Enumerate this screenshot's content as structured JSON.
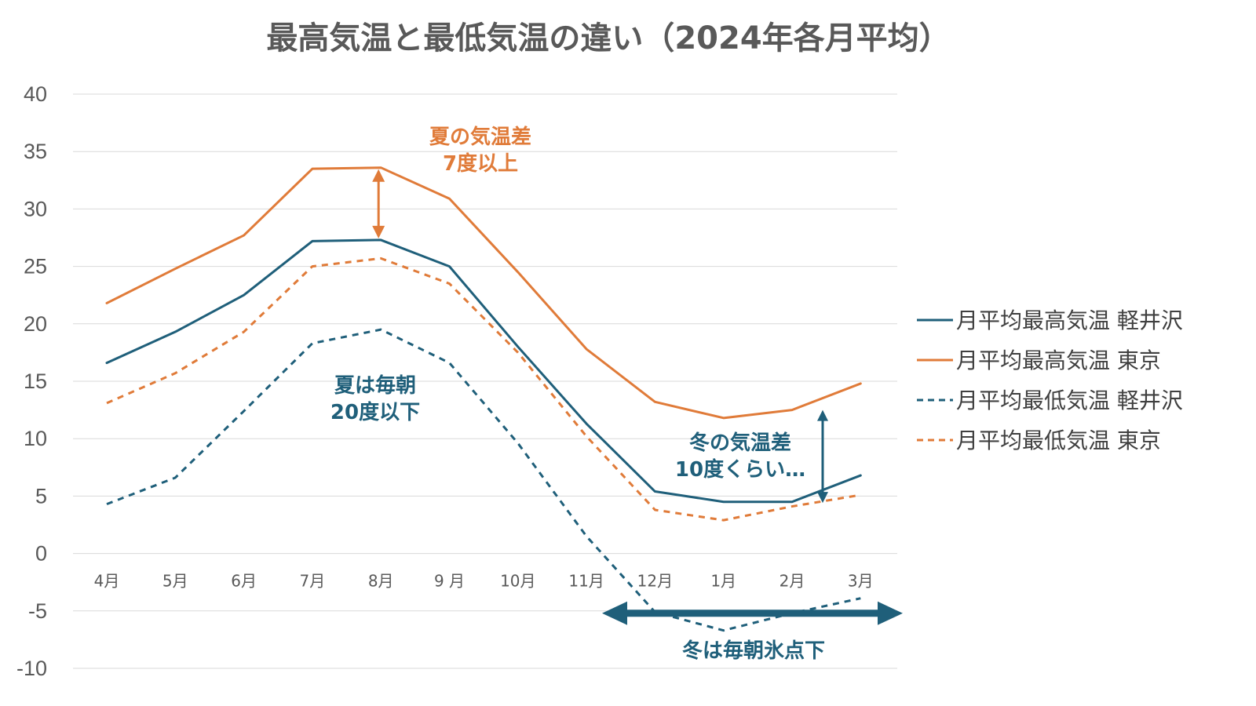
{
  "chart_data": {
    "type": "line",
    "title": "最高気温と最低気温の違い（2024年各月平均）",
    "categories": [
      "4月",
      "5月",
      "6月",
      "7月",
      "8月",
      "9 月",
      "10月",
      "11月",
      "12月",
      "1月",
      "2月",
      "3月"
    ],
    "ylim": [
      -10,
      40
    ],
    "yticks": [
      "40",
      "35",
      "30",
      "25",
      "20",
      "15",
      "10",
      "5",
      "0",
      "-5",
      "-10"
    ],
    "ytick_values": [
      40,
      35,
      30,
      25,
      20,
      15,
      10,
      5,
      0,
      -5,
      -10
    ],
    "grid": true,
    "legend_position": "right",
    "series": [
      {
        "name": "月平均最高気温 軽井沢",
        "color": "#1F5F7A",
        "dashed": false,
        "values": [
          16.6,
          19.3,
          22.5,
          27.2,
          27.3,
          25.0,
          18.0,
          11.3,
          5.4,
          4.5,
          4.5,
          6.8
        ]
      },
      {
        "name": "月平均最高気温 東京",
        "color": "#E07B39",
        "dashed": false,
        "values": [
          21.8,
          24.8,
          27.7,
          33.5,
          33.6,
          30.9,
          24.5,
          17.8,
          13.2,
          11.8,
          12.5,
          14.8
        ]
      },
      {
        "name": "月平均最低気温 軽井沢",
        "color": "#1F5F7A",
        "dashed": true,
        "values": [
          4.3,
          6.6,
          12.4,
          18.3,
          19.5,
          16.6,
          9.6,
          1.5,
          -5.1,
          -6.7,
          -5.2,
          -3.9
        ]
      },
      {
        "name": "月平均最低気温 東京",
        "color": "#E07B39",
        "dashed": true,
        "values": [
          13.1,
          15.7,
          19.3,
          25.0,
          25.7,
          23.5,
          17.5,
          10.2,
          3.8,
          2.9,
          4.1,
          5.1
        ]
      }
    ],
    "annotations": [
      {
        "id": "summer-diff",
        "lines": [
          "夏の気温差",
          "7度以上"
        ],
        "color": "#E07B39"
      },
      {
        "id": "summer-morning",
        "lines": [
          "夏は毎朝",
          "20度以下"
        ],
        "color": "#1F5F7A"
      },
      {
        "id": "winter-diff",
        "lines": [
          "冬の気温差",
          "10度くらい…"
        ],
        "color": "#1F5F7A"
      },
      {
        "id": "winter-freeze",
        "lines": [
          "冬は毎朝氷点下"
        ],
        "color": "#1F5F7A"
      }
    ]
  }
}
